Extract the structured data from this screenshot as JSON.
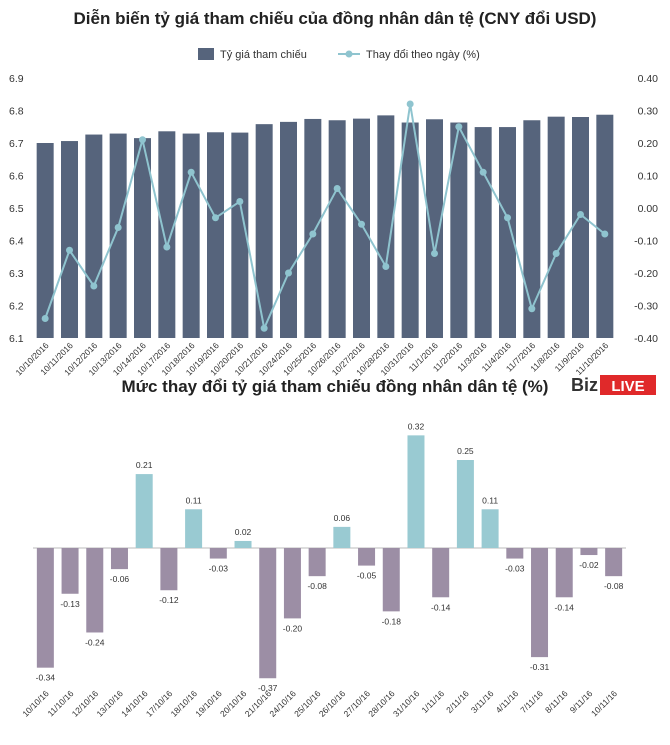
{
  "colors": {
    "bar_top": "#56647c",
    "line_top": "#8fc4cf",
    "positive": "#99cad2",
    "negative": "#9c8ea5",
    "brand_red": "#e0292a"
  },
  "brand": {
    "prefix": "Biz",
    "suffix": "LIVE"
  },
  "chart_data": [
    {
      "type": "bar+line",
      "title": "Diễn biến tỷ giá tham chiếu của đồng nhân dân tệ (CNY đổi USD)",
      "legend": [
        "Tỷ giá tham chiếu",
        "Thay đổi theo ngày (%)"
      ],
      "legend_position": "top",
      "categories": [
        "10/10/2016",
        "10/11/2016",
        "10/12/2016",
        "10/13/2016",
        "10/14/2016",
        "10/17/2016",
        "10/18/2016",
        "10/19/2016",
        "10/20/2016",
        "10/21/2016",
        "10/24/2016",
        "10/25/2016",
        "10/26/2016",
        "10/27/2016",
        "10/28/2016",
        "10/31/2016",
        "11/1/2016",
        "11/2/2016",
        "11/3/2016",
        "11/4/2016",
        "11/7/2016",
        "11/8/2016",
        "11/9/2016",
        "11/10/2016"
      ],
      "series": [
        {
          "name": "Tỷ giá tham chiếu",
          "type": "bar",
          "axis": "left",
          "values": [
            6.7,
            6.706,
            6.726,
            6.729,
            6.715,
            6.736,
            6.729,
            6.733,
            6.732,
            6.758,
            6.765,
            6.774,
            6.77,
            6.775,
            6.785,
            6.763,
            6.773,
            6.763,
            6.749,
            6.749,
            6.77,
            6.781,
            6.78,
            6.787
          ]
        },
        {
          "name": "Thay đổi theo ngày (%)",
          "type": "line",
          "axis": "right",
          "values": [
            -0.34,
            -0.13,
            -0.24,
            -0.06,
            0.21,
            -0.12,
            0.11,
            -0.03,
            0.02,
            -0.37,
            -0.2,
            -0.08,
            0.06,
            -0.05,
            -0.18,
            0.32,
            -0.14,
            0.25,
            0.11,
            -0.03,
            -0.31,
            -0.14,
            -0.02,
            -0.08
          ]
        }
      ],
      "y_left": {
        "min": 6.1,
        "max": 6.9,
        "ticks": [
          "6.1",
          "6.2",
          "6.3",
          "6.4",
          "6.5",
          "6.6",
          "6.7",
          "6.8",
          "6.9"
        ]
      },
      "y_right": {
        "min": -0.4,
        "max": 0.4,
        "ticks": [
          "-0.40",
          "-0.30",
          "-0.20",
          "-0.10",
          "0.00",
          "0.10",
          "0.20",
          "0.30",
          "0.40"
        ]
      },
      "grid": false
    },
    {
      "type": "bar",
      "title": "Mức thay đổi tỷ giá tham chiếu đồng nhân dân tệ (%)",
      "categories": [
        "10/10/16",
        "11/10/16",
        "12/10/16",
        "13/10/16",
        "14/10/16",
        "17/10/16",
        "18/10/16",
        "19/10/16",
        "20/10/16",
        "21/10/16",
        "24/10/16",
        "25/10/16",
        "26/10/16",
        "27/10/16",
        "28/10/16",
        "31/10/16",
        "1/11/16",
        "2/11/16",
        "3/11/16",
        "4/11/16",
        "7/11/16",
        "8/11/16",
        "9/11/16",
        "10/11/16"
      ],
      "values": [
        -0.34,
        -0.13,
        -0.24,
        -0.06,
        0.21,
        -0.12,
        0.11,
        -0.03,
        0.02,
        -0.37,
        -0.2,
        -0.08,
        0.06,
        -0.05,
        -0.18,
        0.32,
        -0.14,
        0.25,
        0.11,
        -0.03,
        -0.31,
        -0.14,
        -0.02,
        -0.08
      ],
      "labels": [
        "-0.34",
        "-0.13",
        "-0.24",
        "-0.06",
        "0.21",
        "-0.12",
        "0.11",
        "-0.03",
        "0.02",
        "-0.37",
        "-0.20",
        "-0.08",
        "0.06",
        "-0.05",
        "-0.18",
        "0.32",
        "-0.14",
        "0.25",
        "0.11",
        "-0.03",
        "-0.31",
        "-0.14",
        "-0.02",
        "-0.08"
      ],
      "grid": false,
      "axes_visible": false
    }
  ]
}
